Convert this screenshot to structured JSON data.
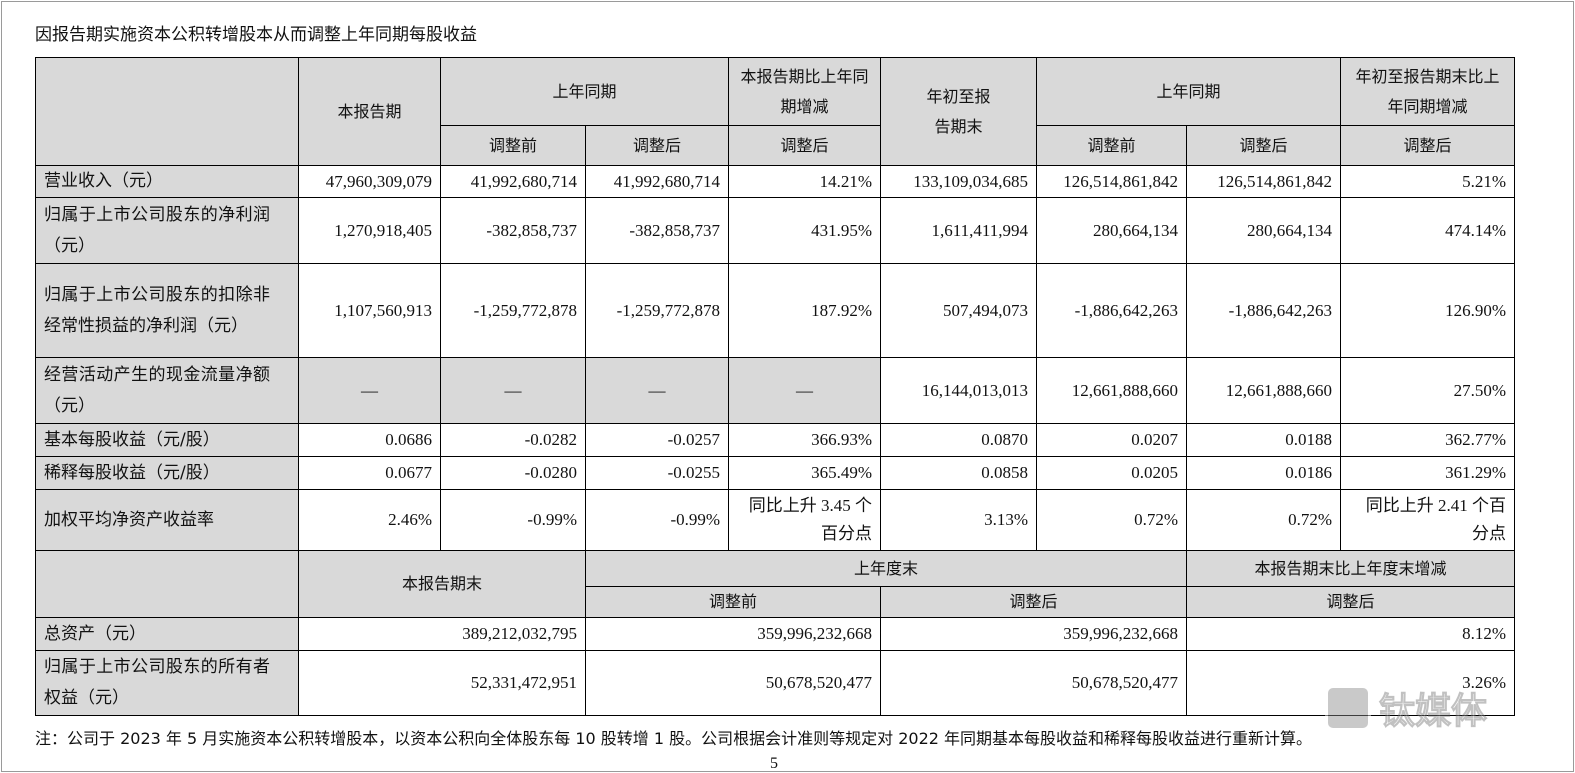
{
  "header": {
    "title": "因报告期实施资本公积转增股本从而调整上年同期每股收益"
  },
  "table": {
    "head": [
      [
        "本报告期",
        "上年同期",
        "本报告期比上年同期增减",
        "年初至报告期末",
        "上年同期",
        "年初至报告期末比上年同期增减"
      ],
      [
        "调整前",
        "调整后",
        "调整后",
        "调整前",
        "调整后",
        "调整后"
      ]
    ],
    "rows": [
      [
        "营业收入（元）",
        "47,960,309,079",
        "41,992,680,714",
        "41,992,680,714",
        "14.21%",
        "133,109,034,685",
        "126,514,861,842",
        "126,514,861,842",
        "5.21%"
      ],
      [
        "归属于上市公司股东的净利润（元）",
        "1,270,918,405",
        "-382,858,737",
        "-382,858,737",
        "431.95%",
        "1,611,411,994",
        "280,664,134",
        "280,664,134",
        "474.14%"
      ],
      [
        "归属于上市公司股东的扣除非经常性损益的净利润（元）",
        "1,107,560,913",
        "-1,259,772,878",
        "-1,259,772,878",
        "187.92%",
        "507,494,073",
        "-1,886,642,263",
        "-1,886,642,263",
        "126.90%"
      ],
      [
        "经营活动产生的现金流量净额（元）",
        "—",
        "—",
        "—",
        "—",
        "16,144,013,013",
        "12,661,888,660",
        "12,661,888,660",
        "27.50%"
      ],
      [
        "基本每股收益（元/股）",
        "0.0686",
        "-0.0282",
        "-0.0257",
        "366.93%",
        "0.0870",
        "0.0207",
        "0.0188",
        "362.77%"
      ],
      [
        "稀释每股收益（元/股）",
        "0.0677",
        "-0.0280",
        "-0.0255",
        "365.49%",
        "0.0858",
        "0.0205",
        "0.0186",
        "361.29%"
      ],
      [
        "加权平均净资产收益率",
        "2.46%",
        "-0.99%",
        "-0.99%",
        "同比上升 3.45 个百分点",
        "3.13%",
        "0.72%",
        "0.72%",
        "同比上升 2.41 个百分点"
      ]
    ]
  },
  "balance": {
    "head": [
      [
        "本报告期末",
        "上年度末",
        "本报告期末比上年度末增减"
      ],
      [
        "调整前",
        "调整后",
        "调整后"
      ]
    ],
    "rows": [
      [
        "总资产（元）",
        "389,212,032,795",
        "359,996,232,668",
        "359,996,232,668",
        "8.12%"
      ],
      [
        "归属于上市公司股东的所有者权益（元）",
        "52,331,472,951",
        "50,678,520,477",
        "50,678,520,477",
        "3.26%"
      ]
    ]
  },
  "note": "注：公司于 2023 年 5 月实施资本公积转增股本，以资本公积向全体股东每 10 股转增 1 股。公司根据会计准则等规定对 2022 年同期基本每股收益和稀释每股收益进行重新计算。",
  "page_number": "5",
  "watermark": "钛媒体"
}
